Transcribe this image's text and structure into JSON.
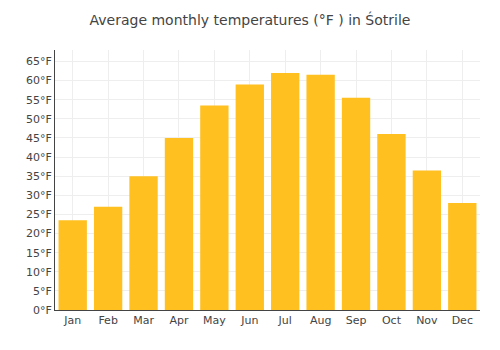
{
  "chart_data": {
    "type": "bar",
    "title": "Average monthly temperatures (°F ) in Śotrile",
    "categories": [
      "Jan",
      "Feb",
      "Mar",
      "Apr",
      "May",
      "Jun",
      "Jul",
      "Aug",
      "Sep",
      "Oct",
      "Nov",
      "Dec"
    ],
    "values": [
      23.5,
      27,
      35,
      45,
      53.5,
      59,
      62,
      61.5,
      55.5,
      46,
      36.5,
      28
    ],
    "color": "#FFC020",
    "ylim": [
      0,
      68
    ],
    "yticks": [
      {
        "value": 0,
        "label": "0°F"
      },
      {
        "value": 5,
        "label": "5°F"
      },
      {
        "value": 10,
        "label": "10°F"
      },
      {
        "value": 15,
        "label": "15°F"
      },
      {
        "value": 20,
        "label": "20°F"
      },
      {
        "value": 25,
        "label": "25°F"
      },
      {
        "value": 30,
        "label": "30°F"
      },
      {
        "value": 35,
        "label": "35°F"
      },
      {
        "value": 40,
        "label": "40°F"
      },
      {
        "value": 45,
        "label": "45°F"
      },
      {
        "value": 50,
        "label": "50°F"
      },
      {
        "value": 55,
        "label": "55°F"
      },
      {
        "value": 60,
        "label": "60°F"
      },
      {
        "value": 65,
        "label": "65°F"
      }
    ],
    "grid": true
  }
}
